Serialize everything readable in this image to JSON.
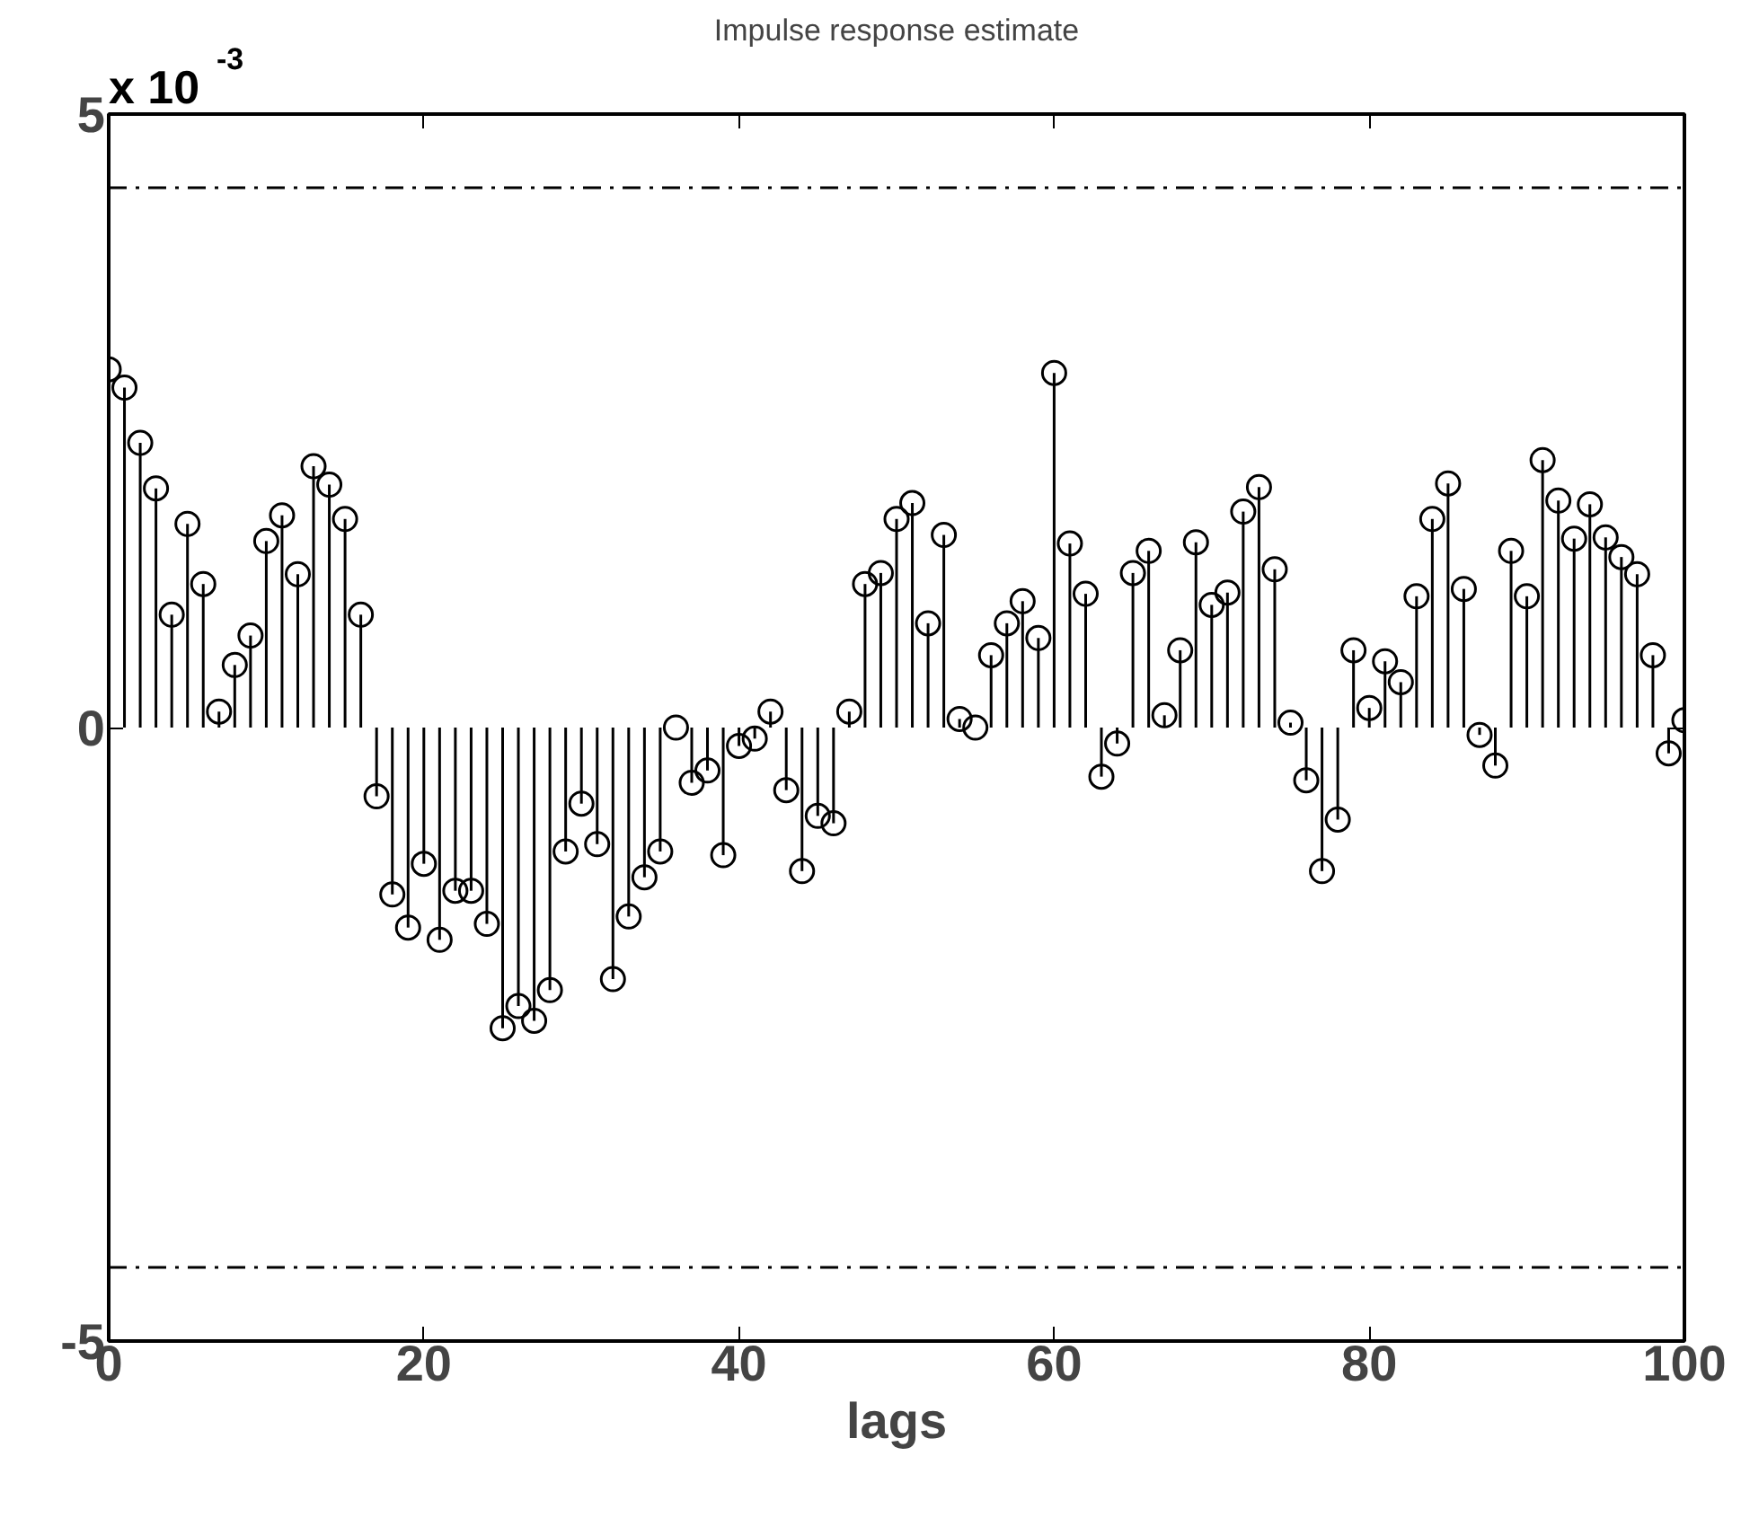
{
  "chart_data": {
    "type": "lollipop",
    "title": "Impulse response estimate",
    "xlabel": "lags",
    "annotations": [
      "x 10$^{-3}$"
    ],
    "x": [
      0,
      1,
      2,
      3,
      4,
      5,
      6,
      7,
      8,
      9,
      10,
      11,
      12,
      13,
      14,
      15,
      16,
      17,
      18,
      19,
      20,
      21,
      22,
      23,
      24,
      25,
      26,
      27,
      28,
      29,
      30,
      31,
      32,
      33,
      34,
      35,
      36,
      37,
      38,
      39,
      40,
      41,
      42,
      43,
      44,
      45,
      46,
      47,
      48,
      49,
      50,
      51,
      52,
      53,
      54,
      55,
      56,
      57,
      58,
      59,
      60,
      61,
      62,
      63,
      64,
      65,
      66,
      67,
      68,
      69,
      70,
      71,
      72,
      73,
      74,
      75,
      76,
      77,
      78,
      79,
      80,
      81,
      82,
      83,
      84,
      85,
      86,
      87,
      88,
      89,
      90,
      91,
      92,
      93,
      94,
      95,
      96,
      97,
      98,
      99,
      100
    ],
    "series": [
      {
        "color": "#000000",
        "values": [
          2.92,
          2.77,
          2.32,
          1.95,
          0.92,
          1.66,
          1.17,
          0.13,
          0.51,
          0.75,
          1.52,
          1.73,
          1.25,
          2.13,
          1.98,
          1.7,
          0.92,
          -0.56,
          -1.36,
          -1.63,
          -1.11,
          -1.73,
          -1.33,
          -1.33,
          -1.6,
          -2.45,
          -2.27,
          -2.39,
          -2.14,
          -1.01,
          -0.62,
          -0.95,
          -2.05,
          -1.54,
          -1.22,
          -1.01,
          0.0,
          -0.45,
          -0.35,
          -1.04,
          -0.15,
          -0.09,
          0.13,
          -0.51,
          -1.17,
          -0.72,
          -0.78,
          0.13,
          1.17,
          1.26,
          1.7,
          1.83,
          0.85,
          1.57,
          0.07,
          0.0,
          0.59,
          0.85,
          1.03,
          0.73,
          2.89,
          1.5,
          1.09,
          -0.4,
          -0.13,
          1.26,
          1.44,
          0.1,
          0.63,
          1.51,
          1.0,
          1.1,
          1.76,
          1.96,
          1.29,
          0.04,
          -0.43,
          -1.17,
          -0.75,
          0.63,
          0.16,
          0.54,
          0.37,
          1.07,
          1.7,
          1.99,
          1.13,
          -0.06,
          -0.31,
          1.44,
          1.07,
          2.18,
          1.85,
          1.54,
          1.82,
          1.55,
          1.39,
          1.25,
          0.59,
          -0.21,
          0.06
        ]
      }
    ],
    "marker": "circle",
    "xlim": [
      0,
      100
    ],
    "xticks": [
      0,
      20,
      40,
      60,
      80,
      100
    ],
    "ylim": [
      -5,
      5
    ],
    "yticks": [
      -5,
      0,
      5
    ],
    "ref_lines": [
      {
        "axis": "y",
        "value": 4.4,
        "color": "#000000",
        "line_style": "dashed"
      },
      {
        "axis": "y",
        "value": -4.4,
        "color": "#000000",
        "line_style": "dashed"
      }
    ]
  }
}
